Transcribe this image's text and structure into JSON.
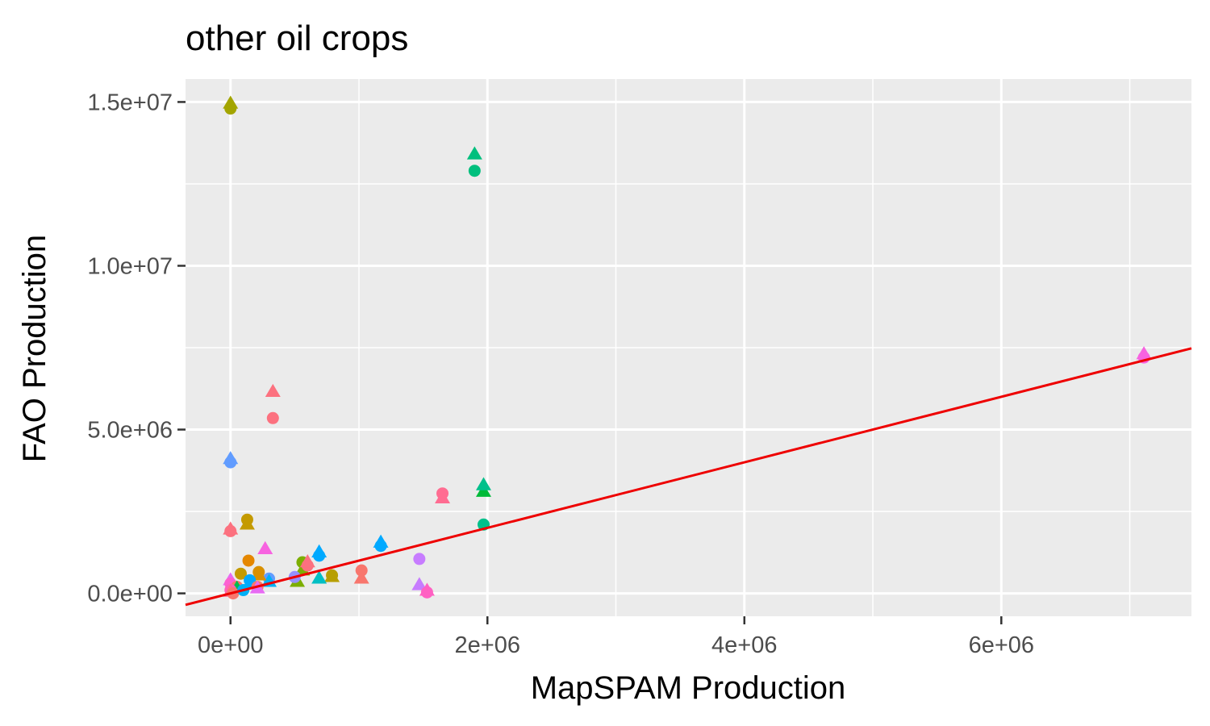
{
  "chart_data": {
    "type": "scatter",
    "title": "other oil crops",
    "xlabel": "MapSPAM Production",
    "ylabel": "FAO Production",
    "xlim": [
      -350000,
      7480000
    ],
    "ylim": [
      -700000,
      15700000
    ],
    "x_ticks": [
      0,
      2000000,
      4000000,
      6000000
    ],
    "x_tick_labels": [
      "0e+00",
      "2e+06",
      "4e+06",
      "6e+06"
    ],
    "y_ticks": [
      0,
      5000000,
      10000000,
      15000000
    ],
    "y_tick_labels": [
      "0.0e+00",
      "5.0e+06",
      "1.0e+07",
      "1.5e+07"
    ],
    "grid": true,
    "background": "#ebebeb",
    "gridline_color": "#ffffff",
    "reference_line": {
      "slope": 1,
      "intercept": 0,
      "color": "#ee0000"
    },
    "markers": [
      "circle",
      "triangle"
    ],
    "points": [
      {
        "x": 0,
        "y": 14800000,
        "shape": "circle",
        "color": "#a3a500"
      },
      {
        "x": 0,
        "y": 14950000,
        "shape": "triangle",
        "color": "#a3a500"
      },
      {
        "x": 1900000,
        "y": 12900000,
        "shape": "circle",
        "color": "#00bf7d"
      },
      {
        "x": 1900000,
        "y": 13400000,
        "shape": "triangle",
        "color": "#00bf7d"
      },
      {
        "x": 7110000,
        "y": 7200000,
        "shape": "circle",
        "color": "#f763e0"
      },
      {
        "x": 7110000,
        "y": 7300000,
        "shape": "triangle",
        "color": "#f763e0"
      },
      {
        "x": 330000,
        "y": 5350000,
        "shape": "circle",
        "color": "#fc717f"
      },
      {
        "x": 330000,
        "y": 6150000,
        "shape": "triangle",
        "color": "#fc717f"
      },
      {
        "x": 0,
        "y": 4000000,
        "shape": "circle",
        "color": "#619cff"
      },
      {
        "x": 0,
        "y": 4100000,
        "shape": "triangle",
        "color": "#619cff"
      },
      {
        "x": 1970000,
        "y": 2100000,
        "shape": "circle",
        "color": "#00c08b"
      },
      {
        "x": 1970000,
        "y": 3100000,
        "shape": "triangle",
        "color": "#00ba38"
      },
      {
        "x": 1970000,
        "y": 3300000,
        "shape": "triangle",
        "color": "#00c08b"
      },
      {
        "x": 1650000,
        "y": 3050000,
        "shape": "circle",
        "color": "#ff6c91"
      },
      {
        "x": 1650000,
        "y": 2900000,
        "shape": "triangle",
        "color": "#ff6c91"
      },
      {
        "x": 130000,
        "y": 2250000,
        "shape": "circle",
        "color": "#c49a00"
      },
      {
        "x": 130000,
        "y": 2100000,
        "shape": "triangle",
        "color": "#c49a00"
      },
      {
        "x": 0,
        "y": 1900000,
        "shape": "circle",
        "color": "#fc717f"
      },
      {
        "x": 0,
        "y": 1950000,
        "shape": "triangle",
        "color": "#fc717f"
      },
      {
        "x": 270000,
        "y": 1350000,
        "shape": "triangle",
        "color": "#f763e0"
      },
      {
        "x": 1170000,
        "y": 1450000,
        "shape": "circle",
        "color": "#00a9ff"
      },
      {
        "x": 1170000,
        "y": 1550000,
        "shape": "triangle",
        "color": "#00a9ff"
      },
      {
        "x": 690000,
        "y": 1150000,
        "shape": "circle",
        "color": "#00a9ff"
      },
      {
        "x": 690000,
        "y": 1250000,
        "shape": "triangle",
        "color": "#00a9ff"
      },
      {
        "x": 1470000,
        "y": 1050000,
        "shape": "circle",
        "color": "#c77cff"
      },
      {
        "x": 1470000,
        "y": 250000,
        "shape": "triangle",
        "color": "#c77cff"
      },
      {
        "x": 1530000,
        "y": 30000,
        "shape": "circle",
        "color": "#ff61c3"
      },
      {
        "x": 1530000,
        "y": 80000,
        "shape": "triangle",
        "color": "#ff61c3"
      },
      {
        "x": 1020000,
        "y": 700000,
        "shape": "circle",
        "color": "#f8766d"
      },
      {
        "x": 1020000,
        "y": 450000,
        "shape": "triangle",
        "color": "#f8766d"
      },
      {
        "x": 140000,
        "y": 1000000,
        "shape": "circle",
        "color": "#e58700"
      },
      {
        "x": 560000,
        "y": 950000,
        "shape": "circle",
        "color": "#7cae00"
      },
      {
        "x": 560000,
        "y": 700000,
        "shape": "triangle",
        "color": "#7cae00"
      },
      {
        "x": 600000,
        "y": 850000,
        "shape": "circle",
        "color": "#fc717f"
      },
      {
        "x": 600000,
        "y": 950000,
        "shape": "triangle",
        "color": "#fc717f"
      },
      {
        "x": 790000,
        "y": 550000,
        "shape": "circle",
        "color": "#b79f00"
      },
      {
        "x": 790000,
        "y": 500000,
        "shape": "triangle",
        "color": "#b79f00"
      },
      {
        "x": 690000,
        "y": 450000,
        "shape": "triangle",
        "color": "#00bfc4"
      },
      {
        "x": 520000,
        "y": 350000,
        "shape": "triangle",
        "color": "#7cae00"
      },
      {
        "x": 500000,
        "y": 500000,
        "shape": "circle",
        "color": "#9590ff"
      },
      {
        "x": 300000,
        "y": 450000,
        "shape": "circle",
        "color": "#619cff"
      },
      {
        "x": 300000,
        "y": 350000,
        "shape": "triangle",
        "color": "#00b0f6"
      },
      {
        "x": 220000,
        "y": 650000,
        "shape": "circle",
        "color": "#d89000"
      },
      {
        "x": 220000,
        "y": 550000,
        "shape": "triangle",
        "color": "#d89000"
      },
      {
        "x": 80000,
        "y": 600000,
        "shape": "circle",
        "color": "#c49a00"
      },
      {
        "x": 150000,
        "y": 400000,
        "shape": "circle",
        "color": "#00a9ff"
      },
      {
        "x": 150000,
        "y": 300000,
        "shape": "triangle",
        "color": "#00a9ff"
      },
      {
        "x": 210000,
        "y": 200000,
        "shape": "circle",
        "color": "#f8766d"
      },
      {
        "x": 210000,
        "y": 150000,
        "shape": "triangle",
        "color": "#e76bf3"
      },
      {
        "x": 0,
        "y": 400000,
        "shape": "triangle",
        "color": "#e76bf3"
      },
      {
        "x": 0,
        "y": 300000,
        "shape": "circle",
        "color": "#fd61d1"
      },
      {
        "x": 50000,
        "y": 200000,
        "shape": "circle",
        "color": "#f8766d"
      },
      {
        "x": 50000,
        "y": 150000,
        "shape": "triangle",
        "color": "#00bb4e"
      },
      {
        "x": 0,
        "y": 100000,
        "shape": "circle",
        "color": "#ff62bc"
      },
      {
        "x": 0,
        "y": 50000,
        "shape": "triangle",
        "color": "#ff6a98"
      },
      {
        "x": 20000,
        "y": 0,
        "shape": "circle",
        "color": "#f8766d"
      },
      {
        "x": 100000,
        "y": 100000,
        "shape": "circle",
        "color": "#00b0f6"
      }
    ]
  }
}
